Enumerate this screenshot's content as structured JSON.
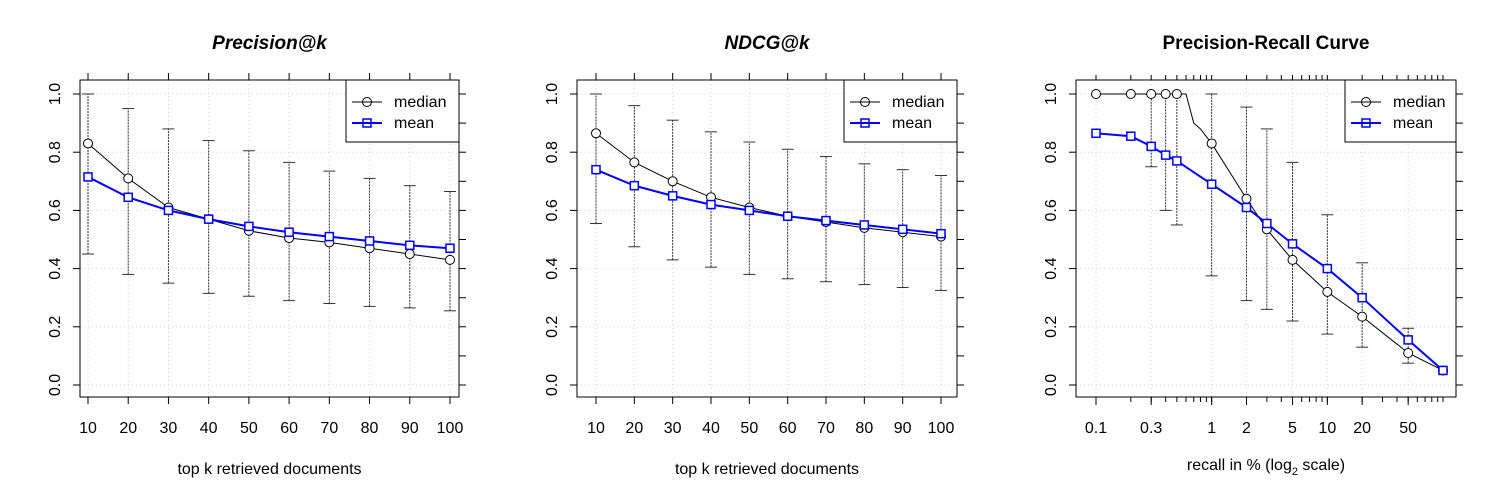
{
  "chart_data": [
    {
      "type": "line",
      "title": "Precision@k",
      "xlabel": "top k retrieved documents",
      "ylabel": "",
      "xlim": [
        10,
        100
      ],
      "ylim": [
        0,
        1
      ],
      "yticks": [
        "0.0",
        "0.2",
        "0.4",
        "0.6",
        "0.8",
        "1.0"
      ],
      "grid": true,
      "legend_position": "top-right",
      "x": [
        10,
        20,
        30,
        40,
        50,
        60,
        70,
        80,
        90,
        100
      ],
      "xtick_labels": [
        "10",
        "20",
        "30",
        "40",
        "50",
        "60",
        "70",
        "80",
        "90",
        "100"
      ],
      "series": [
        {
          "name": "median",
          "color": "#000000",
          "marker": "circle",
          "values": [
            0.83,
            0.71,
            0.61,
            0.57,
            0.53,
            0.505,
            0.49,
            0.47,
            0.45,
            0.43
          ]
        },
        {
          "name": "mean",
          "color": "#0000ff",
          "marker": "square",
          "values": [
            0.715,
            0.645,
            0.6,
            0.57,
            0.545,
            0.525,
            0.51,
            0.495,
            0.48,
            0.47
          ]
        }
      ],
      "error_bars": {
        "lower": [
          0.45,
          0.38,
          0.35,
          0.315,
          0.305,
          0.29,
          0.28,
          0.27,
          0.265,
          0.255
        ],
        "upper": [
          1.0,
          0.95,
          0.88,
          0.84,
          0.805,
          0.765,
          0.735,
          0.71,
          0.685,
          0.665
        ]
      }
    },
    {
      "type": "line",
      "title": "NDCG@k",
      "xlabel": "top k retrieved documents",
      "ylabel": "",
      "xlim": [
        10,
        100
      ],
      "ylim": [
        0,
        1
      ],
      "yticks": [
        "0.0",
        "0.2",
        "0.4",
        "0.6",
        "0.8",
        "1.0"
      ],
      "grid": true,
      "legend_position": "top-right",
      "x": [
        10,
        20,
        30,
        40,
        50,
        60,
        70,
        80,
        90,
        100
      ],
      "xtick_labels": [
        "10",
        "20",
        "30",
        "40",
        "50",
        "60",
        "70",
        "80",
        "90",
        "100"
      ],
      "series": [
        {
          "name": "median",
          "color": "#000000",
          "marker": "circle",
          "values": [
            0.865,
            0.765,
            0.7,
            0.645,
            0.61,
            0.58,
            0.56,
            0.54,
            0.525,
            0.51
          ]
        },
        {
          "name": "mean",
          "color": "#0000ff",
          "marker": "square",
          "values": [
            0.74,
            0.685,
            0.65,
            0.62,
            0.6,
            0.58,
            0.565,
            0.55,
            0.535,
            0.52
          ]
        }
      ],
      "error_bars": {
        "lower": [
          0.555,
          0.475,
          0.43,
          0.405,
          0.38,
          0.365,
          0.355,
          0.345,
          0.335,
          0.325
        ],
        "upper": [
          1.0,
          0.96,
          0.91,
          0.87,
          0.835,
          0.81,
          0.785,
          0.76,
          0.74,
          0.72
        ]
      }
    },
    {
      "type": "line",
      "title": "Precision-Recall Curve",
      "xlabel_main": "recall in % (log",
      "xlabel_sub": "2",
      "xlabel_end": " scale)",
      "ylabel": "",
      "x_scale": "log",
      "xlim": [
        0.1,
        100
      ],
      "ylim": [
        0,
        1
      ],
      "yticks": [
        "0.0",
        "0.2",
        "0.4",
        "0.6",
        "0.8",
        "1.0"
      ],
      "grid": true,
      "legend_position": "top-right",
      "xticks": [
        0.1,
        0.3,
        1,
        2,
        5,
        10,
        20,
        50
      ],
      "xtick_labels": [
        "0.1",
        "0.3",
        "1",
        "2",
        "5",
        "10",
        "20",
        "50"
      ],
      "median_line": {
        "name": "median",
        "color": "#000000",
        "x": [
          0.1,
          0.2,
          0.3,
          0.4,
          0.5,
          0.6,
          0.7,
          0.8,
          1,
          2,
          3,
          5,
          10,
          20,
          50,
          100
        ],
        "values": [
          1.0,
          1.0,
          1.0,
          1.0,
          1.0,
          1.0,
          0.9,
          0.88,
          0.83,
          0.64,
          0.535,
          0.43,
          0.32,
          0.235,
          0.11,
          0.05
        ]
      },
      "median_markers": {
        "x": [
          0.1,
          0.2,
          0.3,
          0.4,
          0.5,
          1,
          2,
          3,
          5,
          10,
          20,
          50,
          100
        ],
        "values": [
          1.0,
          1.0,
          1.0,
          1.0,
          1.0,
          0.83,
          0.64,
          0.535,
          0.43,
          0.32,
          0.235,
          0.11,
          0.05
        ]
      },
      "series": [
        {
          "name": "mean",
          "color": "#0000ff",
          "marker": "square",
          "x": [
            0.1,
            0.2,
            0.3,
            0.4,
            0.5,
            1,
            2,
            3,
            5,
            10,
            20,
            50,
            100
          ],
          "values": [
            0.865,
            0.855,
            0.82,
            0.79,
            0.77,
            0.69,
            0.61,
            0.555,
            0.485,
            0.4,
            0.3,
            0.155,
            0.05
          ]
        }
      ],
      "error_bars": {
        "x": [
          0.3,
          0.4,
          0.5,
          1,
          2,
          3,
          5,
          10,
          20,
          50
        ],
        "lower": [
          0.75,
          0.6,
          0.55,
          0.375,
          0.29,
          0.26,
          0.22,
          0.175,
          0.13,
          0.075
        ],
        "upper": [
          1.0,
          1.0,
          1.0,
          1.0,
          0.955,
          0.88,
          0.765,
          0.585,
          0.42,
          0.195
        ]
      }
    }
  ]
}
